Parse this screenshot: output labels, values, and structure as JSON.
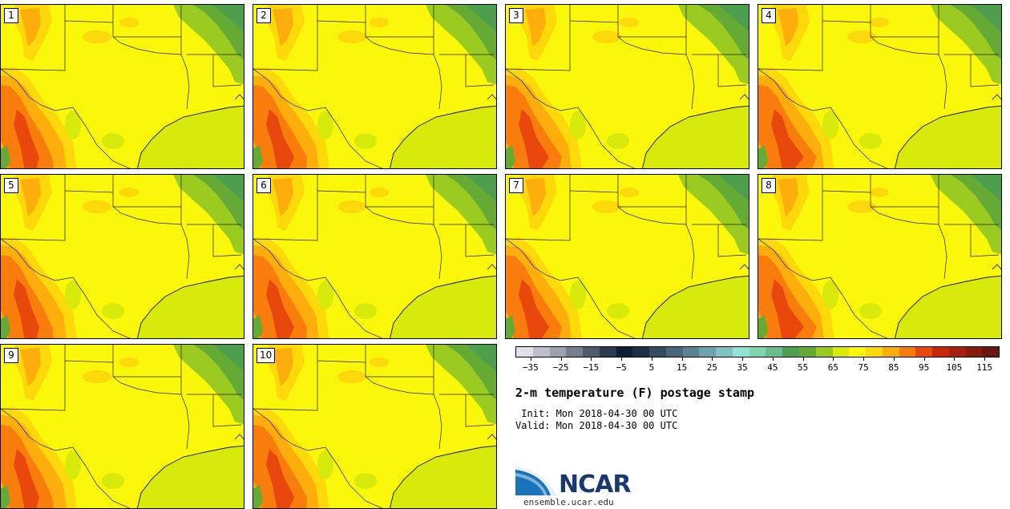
{
  "panels": [
    {
      "label": "1"
    },
    {
      "label": "2"
    },
    {
      "label": "3"
    },
    {
      "label": "4"
    },
    {
      "label": "5"
    },
    {
      "label": "6"
    },
    {
      "label": "7"
    },
    {
      "label": "8"
    },
    {
      "label": "9"
    },
    {
      "label": "10"
    }
  ],
  "colorbar": {
    "colors": [
      "#dfe1e8",
      "#bdc0cb",
      "#9ba1ae",
      "#767f8f",
      "#4f5a6d",
      "#2c3a4f",
      "#0f1e36",
      "#1e3048",
      "#364b62",
      "#47657b",
      "#5b8194",
      "#6ea2ad",
      "#80c2c4",
      "#93e2d6",
      "#7fd3ad",
      "#69bd8c",
      "#4d9f4d",
      "#64aa34",
      "#9bcb21",
      "#d7ea0c",
      "#fbf70a",
      "#fdd80a",
      "#fdae0c",
      "#f97d0c",
      "#e8480c",
      "#c8280a",
      "#a81f0d",
      "#8a1a0c",
      "#6b160c"
    ],
    "tick_labels": [
      "−35",
      "−25",
      "−15",
      "−5",
      "5",
      "15",
      "25",
      "35",
      "45",
      "55",
      "65",
      "75",
      "85",
      "95",
      "105",
      "115"
    ],
    "min": -40,
    "max": 120
  },
  "title": "2-m temperature (F) postage stamp",
  "init": "Init: Mon 2018-04-30 00 UTC",
  "valid": "Valid: Mon 2018-04-30 00 UTC",
  "logo_text": "NCAR",
  "site": "ensemble.ucar.edu"
}
